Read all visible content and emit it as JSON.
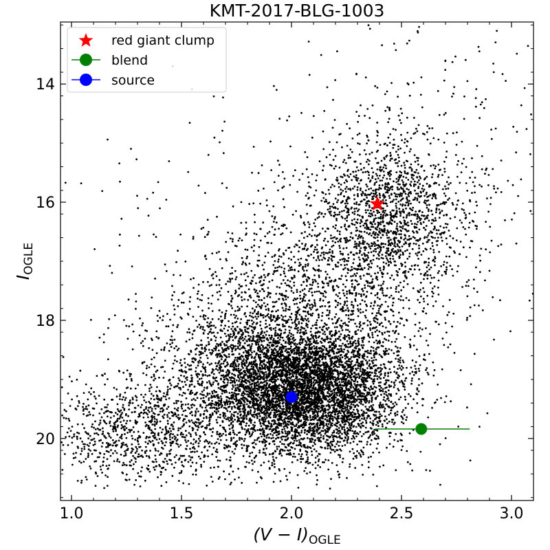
{
  "chart_data": {
    "type": "scatter",
    "title": "KMT-2017-BLG-1003",
    "xlabel_main": "(V − I)",
    "xlabel_sub": "OGLE",
    "ylabel_main": "I",
    "ylabel_sub": "OGLE",
    "xlim": [
      0.95,
      3.1
    ],
    "ylim": [
      21.05,
      12.95
    ],
    "y_inverted": true,
    "x_ticks": [
      1.0,
      1.5,
      2.0,
      2.5,
      3.0
    ],
    "x_tick_labels": [
      "1.0",
      "1.5",
      "2.0",
      "2.5",
      "3.0"
    ],
    "y_ticks": [
      14,
      16,
      18,
      20
    ],
    "y_tick_labels": [
      "14",
      "16",
      "18",
      "20"
    ],
    "legend_position": "upper-left",
    "legend": [
      {
        "label": "red giant clump",
        "marker": "star",
        "color": "#ff0000"
      },
      {
        "label": "blend",
        "marker": "circle-line",
        "color": "#008000"
      },
      {
        "label": "source",
        "marker": "circle-line",
        "color": "#0000ff"
      }
    ],
    "field_stars": {
      "color": "#000000",
      "description_only_for_generation": false,
      "components": [
        {
          "cx": 2.05,
          "cy": 19.2,
          "sx": 0.22,
          "sy": 0.55,
          "n": 5200
        },
        {
          "cx": 1.85,
          "cy": 18.6,
          "sx": 0.28,
          "sy": 0.75,
          "n": 1400
        },
        {
          "cx": 2.45,
          "cy": 16.2,
          "sx": 0.17,
          "sy": 0.65,
          "n": 1300
        },
        {
          "cx": 1.3,
          "cy": 19.9,
          "sx": 0.2,
          "sy": 0.45,
          "n": 900
        },
        {
          "cx": 2.2,
          "cy": 17.4,
          "sx": 0.28,
          "sy": 0.8,
          "n": 1000
        },
        {
          "cx": 2.65,
          "cy": 15.4,
          "sx": 0.35,
          "sy": 1.4,
          "n": 320
        },
        {
          "cx": 1.7,
          "cy": 16.5,
          "sx": 0.35,
          "sy": 1.6,
          "n": 120
        }
      ]
    },
    "red_giant_clump": {
      "x": 2.39,
      "y": 16.03
    },
    "blend": {
      "x": 2.59,
      "y": 19.84,
      "x_err_low": 0.21,
      "x_err_high": 0.22
    },
    "source": {
      "x": 2.0,
      "y": 19.3
    }
  }
}
